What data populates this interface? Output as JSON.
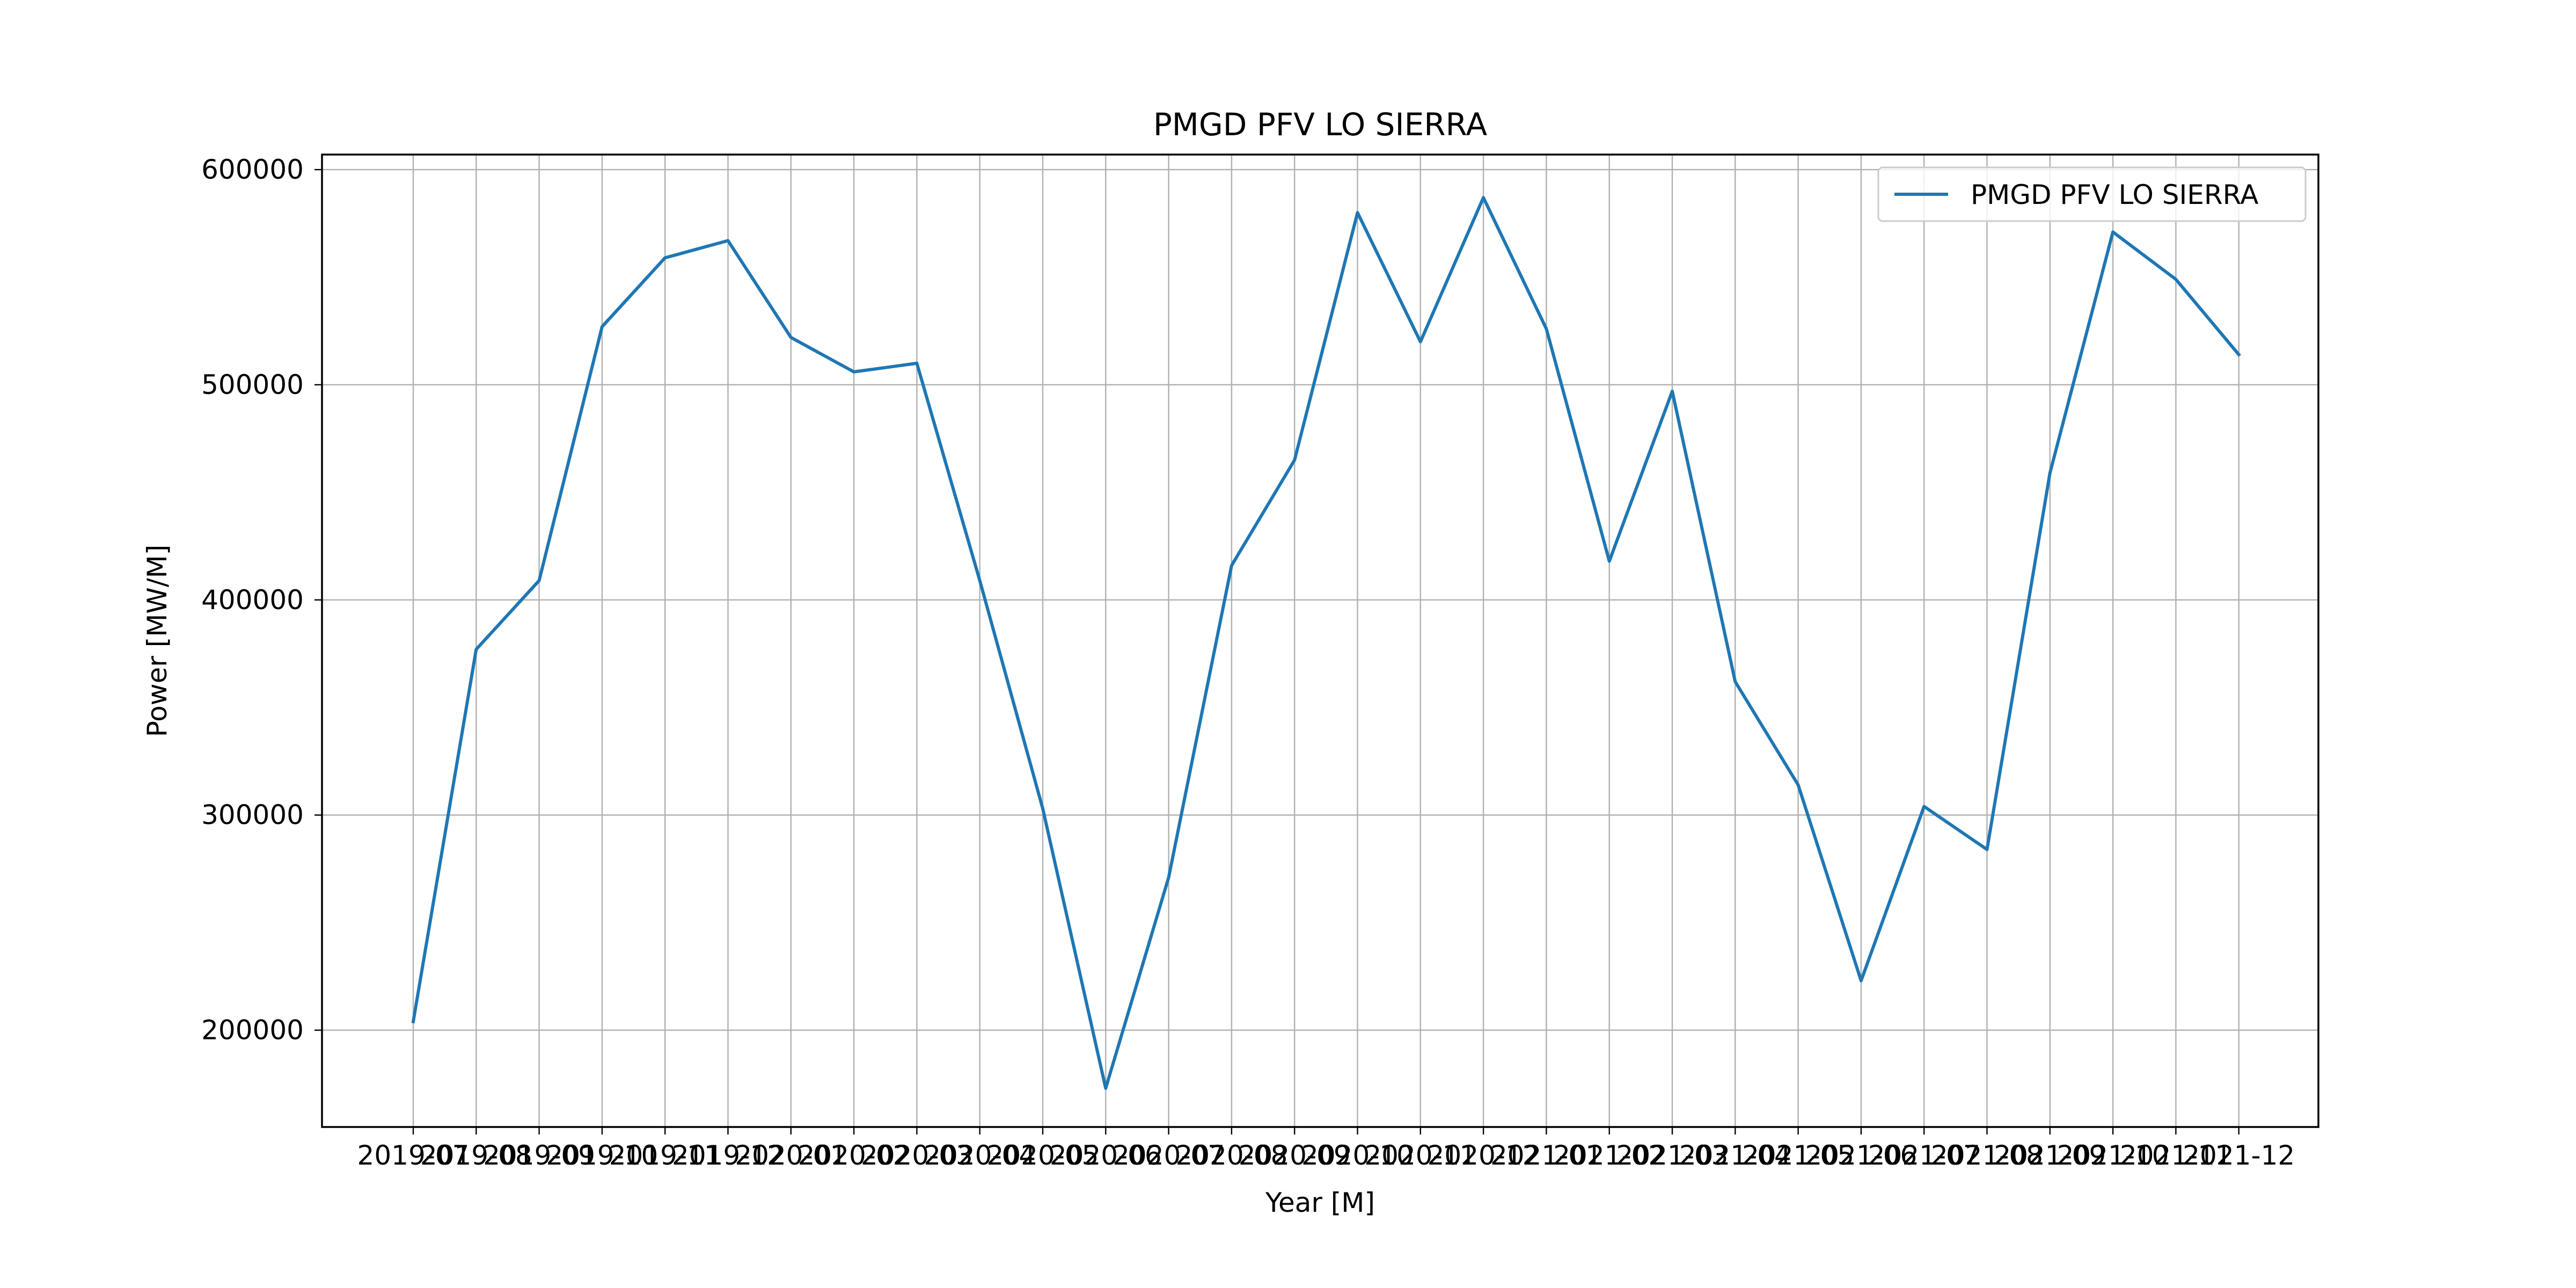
{
  "chart_data": {
    "type": "line",
    "title": "PMGD PFV LO SIERRA",
    "xlabel": "Year [M]",
    "ylabel": "Power [MW/M]",
    "categories": [
      "2019-07",
      "2019-08",
      "2019-09",
      "2019-10",
      "2019-11",
      "2019-12",
      "2020-01",
      "2020-02",
      "2020-03",
      "2020-04",
      "2020-05",
      "2020-06",
      "2020-07",
      "2020-08",
      "2020-09",
      "2020-10",
      "2020-11",
      "2020-12",
      "2021-01",
      "2021-02",
      "2021-03",
      "2021-04",
      "2021-05",
      "2021-06",
      "2021-07",
      "2021-08",
      "2021-09",
      "2021-10",
      "2021-11",
      "2021-12"
    ],
    "series": [
      {
        "name": "PMGD PFV LO SIERRA",
        "color": "#1f77b4",
        "values": [
          204000,
          377000,
          409000,
          527000,
          559000,
          567000,
          522000,
          506000,
          510000,
          409000,
          303000,
          173000,
          271000,
          416000,
          465000,
          580000,
          520000,
          587000,
          526000,
          418000,
          497000,
          362000,
          314000,
          223000,
          304000,
          284000,
          459000,
          571000,
          549000,
          514000
        ]
      }
    ],
    "ylim": [
      155000,
      607000
    ],
    "yticks": [
      200000,
      300000,
      400000,
      500000,
      600000
    ],
    "grid": true,
    "legend": "top-right"
  }
}
